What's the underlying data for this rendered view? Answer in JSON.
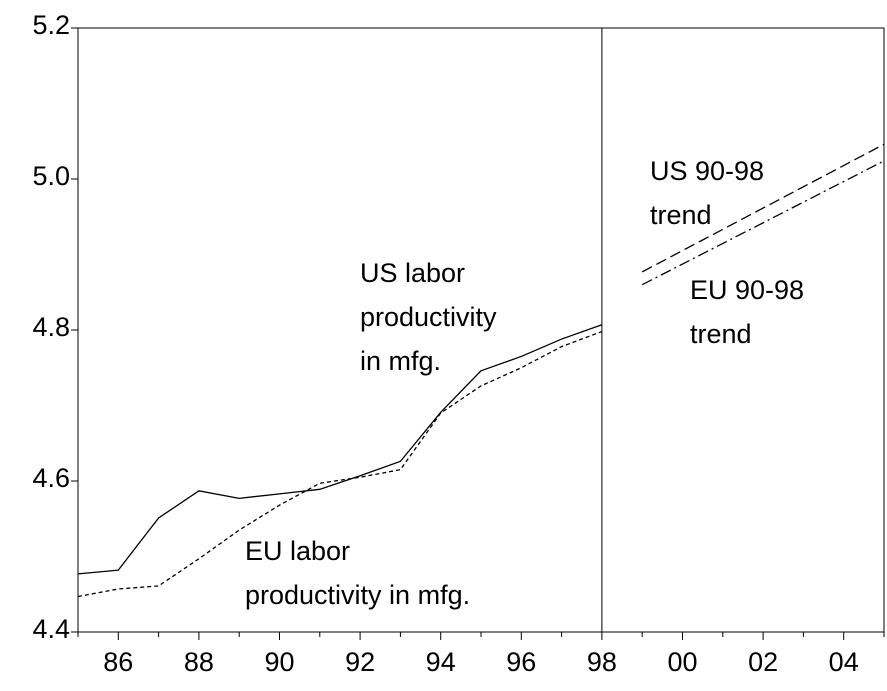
{
  "chart_data": {
    "type": "line",
    "series": [
      {
        "name": "US labor productivity in mfg.",
        "color": "#000000",
        "dash": "none",
        "x": [
          1985,
          1986,
          1987,
          1988,
          1989,
          1990,
          1991,
          1992,
          1993,
          1994,
          1995,
          1996,
          1997,
          1998
        ],
        "values": [
          4.477,
          4.482,
          4.551,
          4.587,
          4.577,
          4.583,
          4.589,
          4.607,
          4.626,
          4.691,
          4.746,
          4.765,
          4.788,
          4.807
        ]
      },
      {
        "name": "EU labor productivity in mfg.",
        "color": "#000000",
        "dash": "4 3",
        "x": [
          1985,
          1986,
          1987,
          1988,
          1989,
          1990,
          1991,
          1992,
          1993,
          1994,
          1995,
          1996,
          1997,
          1998
        ],
        "values": [
          4.447,
          4.457,
          4.461,
          4.497,
          4.535,
          4.568,
          4.597,
          4.605,
          4.615,
          4.69,
          4.726,
          4.75,
          4.778,
          4.798
        ]
      },
      {
        "name": "US 90-98 trend",
        "color": "#000000",
        "dash": "11 5",
        "x": [
          1999,
          2005
        ],
        "values": [
          4.877,
          5.046
        ]
      },
      {
        "name": "EU 90-98 trend",
        "color": "#000000",
        "dash": "11 4 2 4",
        "x": [
          1999,
          2005
        ],
        "values": [
          4.86,
          5.024
        ]
      }
    ],
    "annotations": [
      {
        "lines": [
          "US labor",
          "productivity",
          "in mfg."
        ]
      },
      {
        "lines": [
          "EU labor",
          "productivity in mfg."
        ]
      },
      {
        "lines": [
          "US 90-98",
          "trend"
        ]
      },
      {
        "lines": [
          "EU 90-98",
          "trend"
        ]
      }
    ],
    "vline": 1998,
    "xlim": [
      1985,
      2005
    ],
    "xticks": [
      {
        "value": 1986,
        "label": "86"
      },
      {
        "value": 1988,
        "label": "88"
      },
      {
        "value": 1990,
        "label": "90"
      },
      {
        "value": 1992,
        "label": "92"
      },
      {
        "value": 1994,
        "label": "94"
      },
      {
        "value": 1996,
        "label": "96"
      },
      {
        "value": 1998,
        "label": "98"
      },
      {
        "value": 2000,
        "label": "00"
      },
      {
        "value": 2002,
        "label": "02"
      },
      {
        "value": 2004,
        "label": "04"
      }
    ],
    "xminorticks": [
      1985,
      1987,
      1989,
      1991,
      1993,
      1995,
      1997,
      1999,
      2001,
      2003,
      2005
    ],
    "ylim": [
      4.4,
      5.2
    ],
    "yticks": [
      {
        "value": 4.4,
        "label": "4.4"
      },
      4.6,
      4.8,
      {
        "value": 5.0,
        "label": "5.0"
      },
      5.2
    ],
    "grid": false
  }
}
